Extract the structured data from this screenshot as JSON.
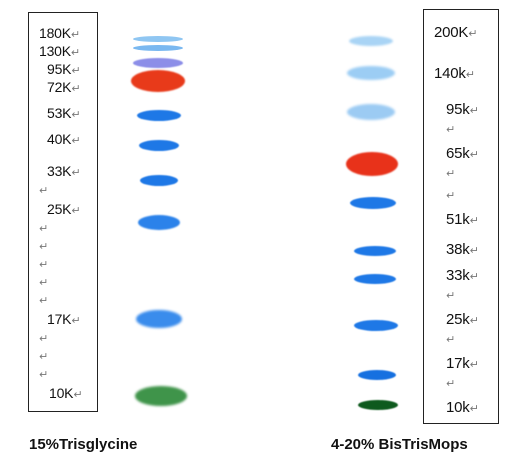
{
  "left_panel": {
    "caption": "15%Trisglycine",
    "labels": [
      "180K",
      "130K",
      "95K",
      "72K",
      "53K",
      "40K",
      "33K",
      "25K",
      "17K",
      "10K"
    ]
  },
  "right_panel": {
    "caption": "4-20% BisTrisMops",
    "labels": [
      "200K",
      "140k",
      "95k",
      "65k",
      "51k",
      "38k",
      "33k",
      "25k",
      "17k",
      "10k"
    ]
  },
  "return_mark": "↵",
  "colors": {
    "blue_band": "#1e78e6",
    "light_blue_band": "#7ab8f0",
    "red_band": "#e83a1a",
    "green_band": "#2f8a3a",
    "dark_green_band": "#0e5a1e",
    "purple_band": "#7a7ee8"
  }
}
